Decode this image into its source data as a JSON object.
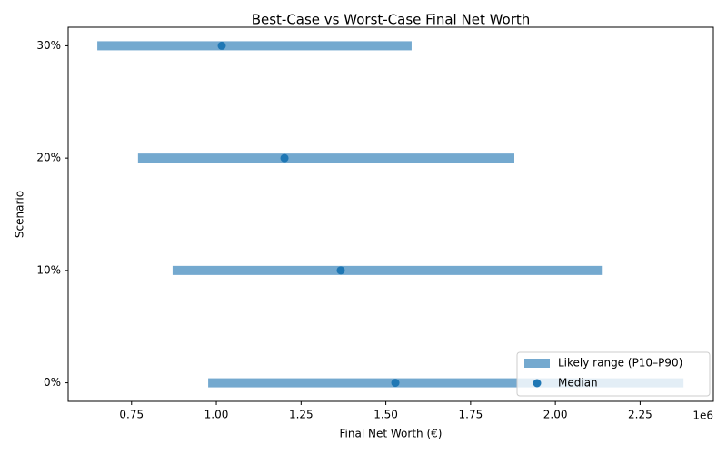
{
  "chart_data": {
    "type": "range",
    "title": "Best-Case vs Worst-Case Final Net Worth",
    "x_label": "Final Net Worth (€)",
    "y_label": "Scenario",
    "x_offset_label": "1e6",
    "categories": [
      "0%",
      "10%",
      "20%",
      "30%"
    ],
    "series": [
      {
        "name": "Likely range (P10–P90)",
        "color": "#74a9cf",
        "low": [
          0.976,
          0.871,
          0.769,
          0.649
        ],
        "high": [
          2.378,
          2.137,
          1.879,
          1.576
        ]
      },
      {
        "name": "Median",
        "color": "#1f77b4",
        "values": [
          1.528,
          1.367,
          1.201,
          1.016
        ]
      }
    ],
    "xlim": [
      0.563,
      2.466
    ],
    "xticks": [
      {
        "value": 0.75,
        "label": "0.75"
      },
      {
        "value": 1.0,
        "label": "1.00"
      },
      {
        "value": 1.25,
        "label": "1.25"
      },
      {
        "value": 1.5,
        "label": "1.50"
      },
      {
        "value": 1.75,
        "label": "1.75"
      },
      {
        "value": 2.0,
        "label": "2.00"
      },
      {
        "value": 2.25,
        "label": "2.25"
      }
    ],
    "legend": "lower right",
    "grid": false
  }
}
